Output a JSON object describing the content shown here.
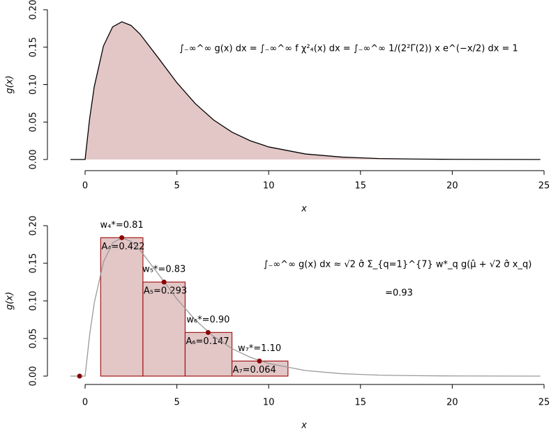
{
  "chart_data": [
    {
      "type": "area",
      "xlabel": "x",
      "ylabel": "g(x)",
      "annotations": [
        "∫₋∞^∞ g(x) dx = ∫₋∞^∞ f χ²₄(x) dx = ∫₋∞^∞ 1/(2²Γ(2)) x e^(−x/2) dx = 1"
      ],
      "x": [
        -0.8,
        0,
        0.25,
        0.5,
        1,
        1.5,
        2,
        2.5,
        3,
        4,
        5,
        6,
        7,
        8,
        9,
        10,
        12,
        14,
        16,
        18,
        20,
        22,
        24.8
      ],
      "series": [
        {
          "name": "g(x)",
          "color": "#000000",
          "fill": "#e3c6c6",
          "values": [
            0,
            0,
            0.0552,
            0.0974,
            0.1516,
            0.1771,
            0.1839,
            0.1791,
            0.1673,
            0.1353,
            0.1026,
            0.0747,
            0.0528,
            0.0366,
            0.025,
            0.0168,
            0.0074,
            0.0032,
            0.0013,
            0.0006,
            0.0002,
            0.0001,
            0
          ]
        }
      ],
      "xlim": [
        0,
        25
      ],
      "xticks": [
        0,
        5,
        10,
        15,
        20,
        25
      ],
      "ylim": [
        0,
        0.2
      ],
      "yticks": [
        {
          "value": 0,
          "label": "0.00"
        },
        {
          "value": 0.05,
          "label": "0.05"
        },
        {
          "value": 0.1,
          "label": "0.10"
        },
        {
          "value": 0.15,
          "label": "0.15"
        },
        {
          "value": 0.2,
          "label": "0.20"
        }
      ]
    },
    {
      "type": "quadrature",
      "xlabel": "x",
      "ylabel": "g(x)",
      "annotations": [
        "∫₋∞^∞ g(x) dx ≈ √2 σ̂ Σ_{q=1}^{7} w*_q g(μ̂ + √2 σ̂ x_q)",
        "=0.93"
      ],
      "x": [
        -0.8,
        0,
        0.25,
        0.5,
        1,
        1.5,
        2,
        2.5,
        3,
        4,
        5,
        6,
        7,
        8,
        9,
        10,
        12,
        14,
        16,
        18,
        20,
        22,
        24.8
      ],
      "series": [
        {
          "name": "g(x)",
          "color": "#999999",
          "values": [
            0,
            0,
            0.0552,
            0.0974,
            0.1516,
            0.1771,
            0.1839,
            0.1791,
            0.1673,
            0.1353,
            0.1026,
            0.0747,
            0.0528,
            0.0366,
            0.025,
            0.0168,
            0.0074,
            0.0032,
            0.0013,
            0.0006,
            0.0002,
            0.0001,
            0
          ]
        }
      ],
      "bins": [
        0.85,
        3.15,
        5.45,
        8.0,
        11.05
      ],
      "bar_values": [
        0.184,
        0.125,
        0.058,
        0.02
      ],
      "bar_color": "#e3c6c6",
      "bar_edge": "#a01818",
      "area_labels": [
        "A₄=0.422",
        "A₅=0.293",
        "A₆=0.147",
        "A₇=0.064"
      ],
      "weight_labels": [
        "w₄*=0.81",
        "w₅*=0.83",
        "w₆*=0.90",
        "w₇*=1.10"
      ],
      "points": {
        "x": [
          -0.3,
          2,
          4.3,
          6.7,
          9.5
        ],
        "values": [
          0,
          0.184,
          0.125,
          0.058,
          0.02
        ],
        "color": "#8b0000"
      },
      "xlim": [
        0,
        25
      ],
      "xticks": [
        0,
        5,
        10,
        15,
        20,
        25
      ],
      "ylim": [
        0,
        0.2
      ],
      "yticks": [
        {
          "value": 0,
          "label": "0.00"
        },
        {
          "value": 0.05,
          "label": "0.05"
        },
        {
          "value": 0.1,
          "label": "0.10"
        },
        {
          "value": 0.15,
          "label": "0.15"
        },
        {
          "value": 0.2,
          "label": "0.20"
        }
      ]
    }
  ]
}
